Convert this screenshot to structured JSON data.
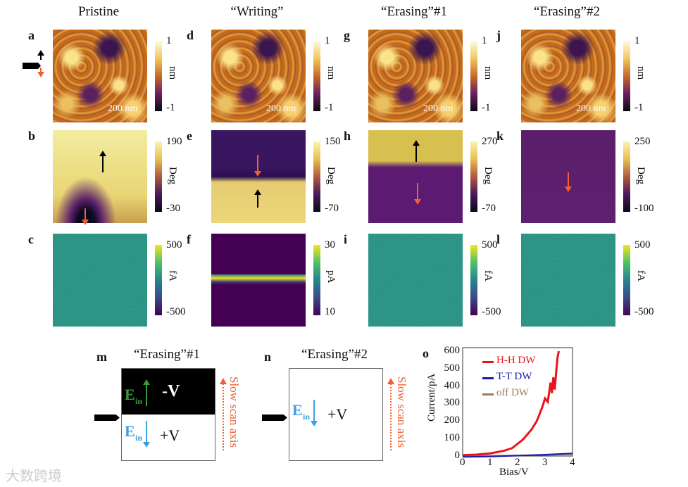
{
  "columns": [
    {
      "title": "Pristine",
      "labels": [
        "a",
        "b",
        "c"
      ],
      "topo": {
        "max": "1",
        "min": "-1",
        "unit": "nm",
        "scale": "200 nm"
      },
      "phase": {
        "max": "190",
        "min": "-30",
        "unit": "Deg"
      },
      "current": {
        "max": "500",
        "min": "-500",
        "unit": "fA"
      }
    },
    {
      "title": "“Writing”",
      "labels": [
        "d",
        "e",
        "f"
      ],
      "topo": {
        "max": "1",
        "min": "-1",
        "unit": "nm",
        "scale": "200 nm"
      },
      "phase": {
        "max": "150",
        "min": "-70",
        "unit": "Deg"
      },
      "current": {
        "max": "30",
        "min": "10",
        "unit": "pA"
      }
    },
    {
      "title": "“Erasing”#1",
      "labels": [
        "g",
        "h",
        "i"
      ],
      "topo": {
        "max": "1",
        "min": "-1",
        "unit": "nm",
        "scale": "200 nm"
      },
      "phase": {
        "max": "270",
        "min": "-70",
        "unit": "Deg"
      },
      "current": {
        "max": "500",
        "min": "-500",
        "unit": "fA"
      }
    },
    {
      "title": "“Erasing”#2",
      "labels": [
        "j",
        "k",
        "l"
      ],
      "topo": {
        "max": "1",
        "min": "-1",
        "unit": "nm",
        "scale": "200 nm"
      },
      "phase": {
        "max": "250",
        "min": "-100",
        "unit": "Deg"
      },
      "current": {
        "max": "500",
        "min": "-500",
        "unit": "fA"
      }
    }
  ],
  "schematics": {
    "m": {
      "label": "m",
      "title": "“Erasing”#1",
      "e_label": "E",
      "e_sub": "in",
      "neg_v": "-V",
      "pos_v": "+V",
      "axis": "Slow scan axis"
    },
    "n": {
      "label": "n",
      "title": "“Erasing”#2",
      "e_label": "E",
      "e_sub": "in",
      "pos_v": "+V",
      "axis": "Slow scan axis"
    }
  },
  "colors": {
    "hh": "#e8141c",
    "tt": "#1a1ab0",
    "off": "#a07a5a",
    "arrow_orange": "#f06030",
    "e_up": "#3a9a3a",
    "e_down": "#3aa0e0"
  },
  "chart_data": {
    "type": "line",
    "label": "o",
    "xlabel": "Bias/V",
    "ylabel": "Current/pA",
    "xlim": [
      0,
      4
    ],
    "ylim": [
      0,
      620
    ],
    "xticks": [
      0,
      1,
      2,
      3,
      4
    ],
    "yticks": [
      0,
      100,
      200,
      300,
      400,
      500,
      600
    ],
    "legend": "top-right",
    "series": [
      {
        "name": "H-H DW",
        "color": "#e8141c",
        "x": [
          0,
          0.5,
          1,
          1.5,
          1.8,
          2,
          2.2,
          2.5,
          2.7,
          2.9,
          3.0,
          3.1,
          3.2,
          3.25,
          3.3,
          3.35,
          3.4,
          3.45,
          3.5
        ],
        "y": [
          5,
          8,
          15,
          30,
          45,
          70,
          95,
          150,
          200,
          280,
          330,
          310,
          420,
          360,
          450,
          380,
          470,
          560,
          600
        ]
      },
      {
        "name": "T-T DW",
        "color": "#1a1ab0",
        "x": [
          0,
          1,
          2,
          3,
          4
        ],
        "y": [
          -5,
          -3,
          2,
          8,
          15
        ]
      },
      {
        "name": "off DW",
        "color": "#a07a5a",
        "x": [
          0,
          1,
          2,
          3,
          4
        ],
        "y": [
          0,
          2,
          4,
          6,
          10
        ]
      }
    ]
  },
  "watermark": "大数跨境"
}
